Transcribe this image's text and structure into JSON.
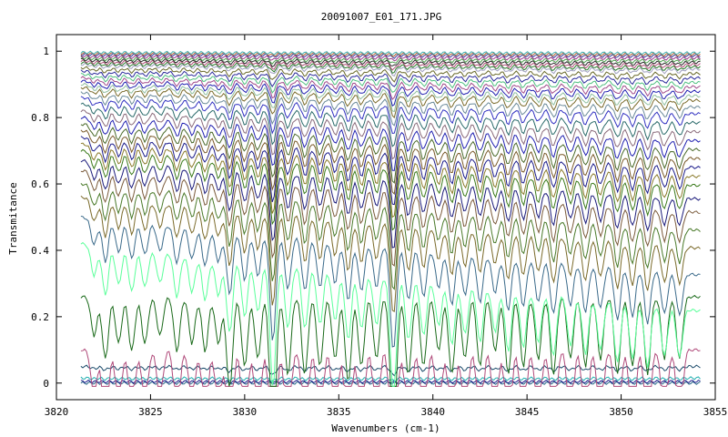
{
  "chart_data": {
    "type": "line",
    "title": "20091007_E01_171.JPG",
    "xlabel": "Wavenumbers (cm-1)",
    "ylabel": "Transmitance",
    "xlim": [
      3820,
      3855
    ],
    "ylim": [
      -0.05,
      1.05
    ],
    "x_ticks": [
      3820,
      3825,
      3830,
      3835,
      3840,
      3845,
      3850,
      3855
    ],
    "x_tick_labels": [
      "3820",
      "3825",
      "3830",
      "3835",
      "3840",
      "3845",
      "3850",
      "3855"
    ],
    "y_ticks": [
      0,
      0.2,
      0.4,
      0.6,
      0.8,
      1
    ],
    "y_tick_labels": [
      "0",
      "0.2",
      "0.4",
      "0.6",
      "0.8",
      "1"
    ],
    "x_data_range": [
      3821.3,
      3854.2
    ],
    "grid": false,
    "legend": "none",
    "series_baselines": [
      0.0,
      0.005,
      0.015,
      0.05,
      0.1,
      0.26,
      0.42,
      0.5,
      0.56,
      0.6,
      0.64,
      0.67,
      0.7,
      0.72,
      0.74,
      0.76,
      0.78,
      0.8,
      0.82,
      0.84,
      0.86,
      0.875,
      0.89,
      0.9,
      0.91,
      0.92,
      0.93,
      0.94,
      0.95,
      0.96,
      0.965,
      0.97,
      0.975,
      0.98,
      0.985,
      0.99,
      0.993,
      0.996
    ],
    "series_colors": [
      "#2a6a8a",
      "#1a1a8a",
      "#20b0b0",
      "#1a4a6a",
      "#b04a7a",
      "#1a6a1a",
      "#5aff9a",
      "#3a6a8a",
      "#7a6a2a",
      "#4a7a2a",
      "#7a5a3a",
      "#1a1a7a",
      "#3a7a1a",
      "#8a7a2a",
      "#1a1a8a",
      "#7a5a2a",
      "#4a6a2a",
      "#2020b0",
      "#8a6a7a",
      "#2a6a6a",
      "#3030c0",
      "#6a8a9a",
      "#7a6a2a",
      "#90c0a0",
      "#2020b0",
      "#a04a8a",
      "#50c080",
      "#2a2a9a",
      "#6a6a2a",
      "#a0a0c0",
      "#2a7a2a",
      "#b0507a",
      "#2a2a2a",
      "#50a050",
      "#9a3a8a",
      "#3a3a9a",
      "#b06030",
      "#40b0b0"
    ]
  }
}
